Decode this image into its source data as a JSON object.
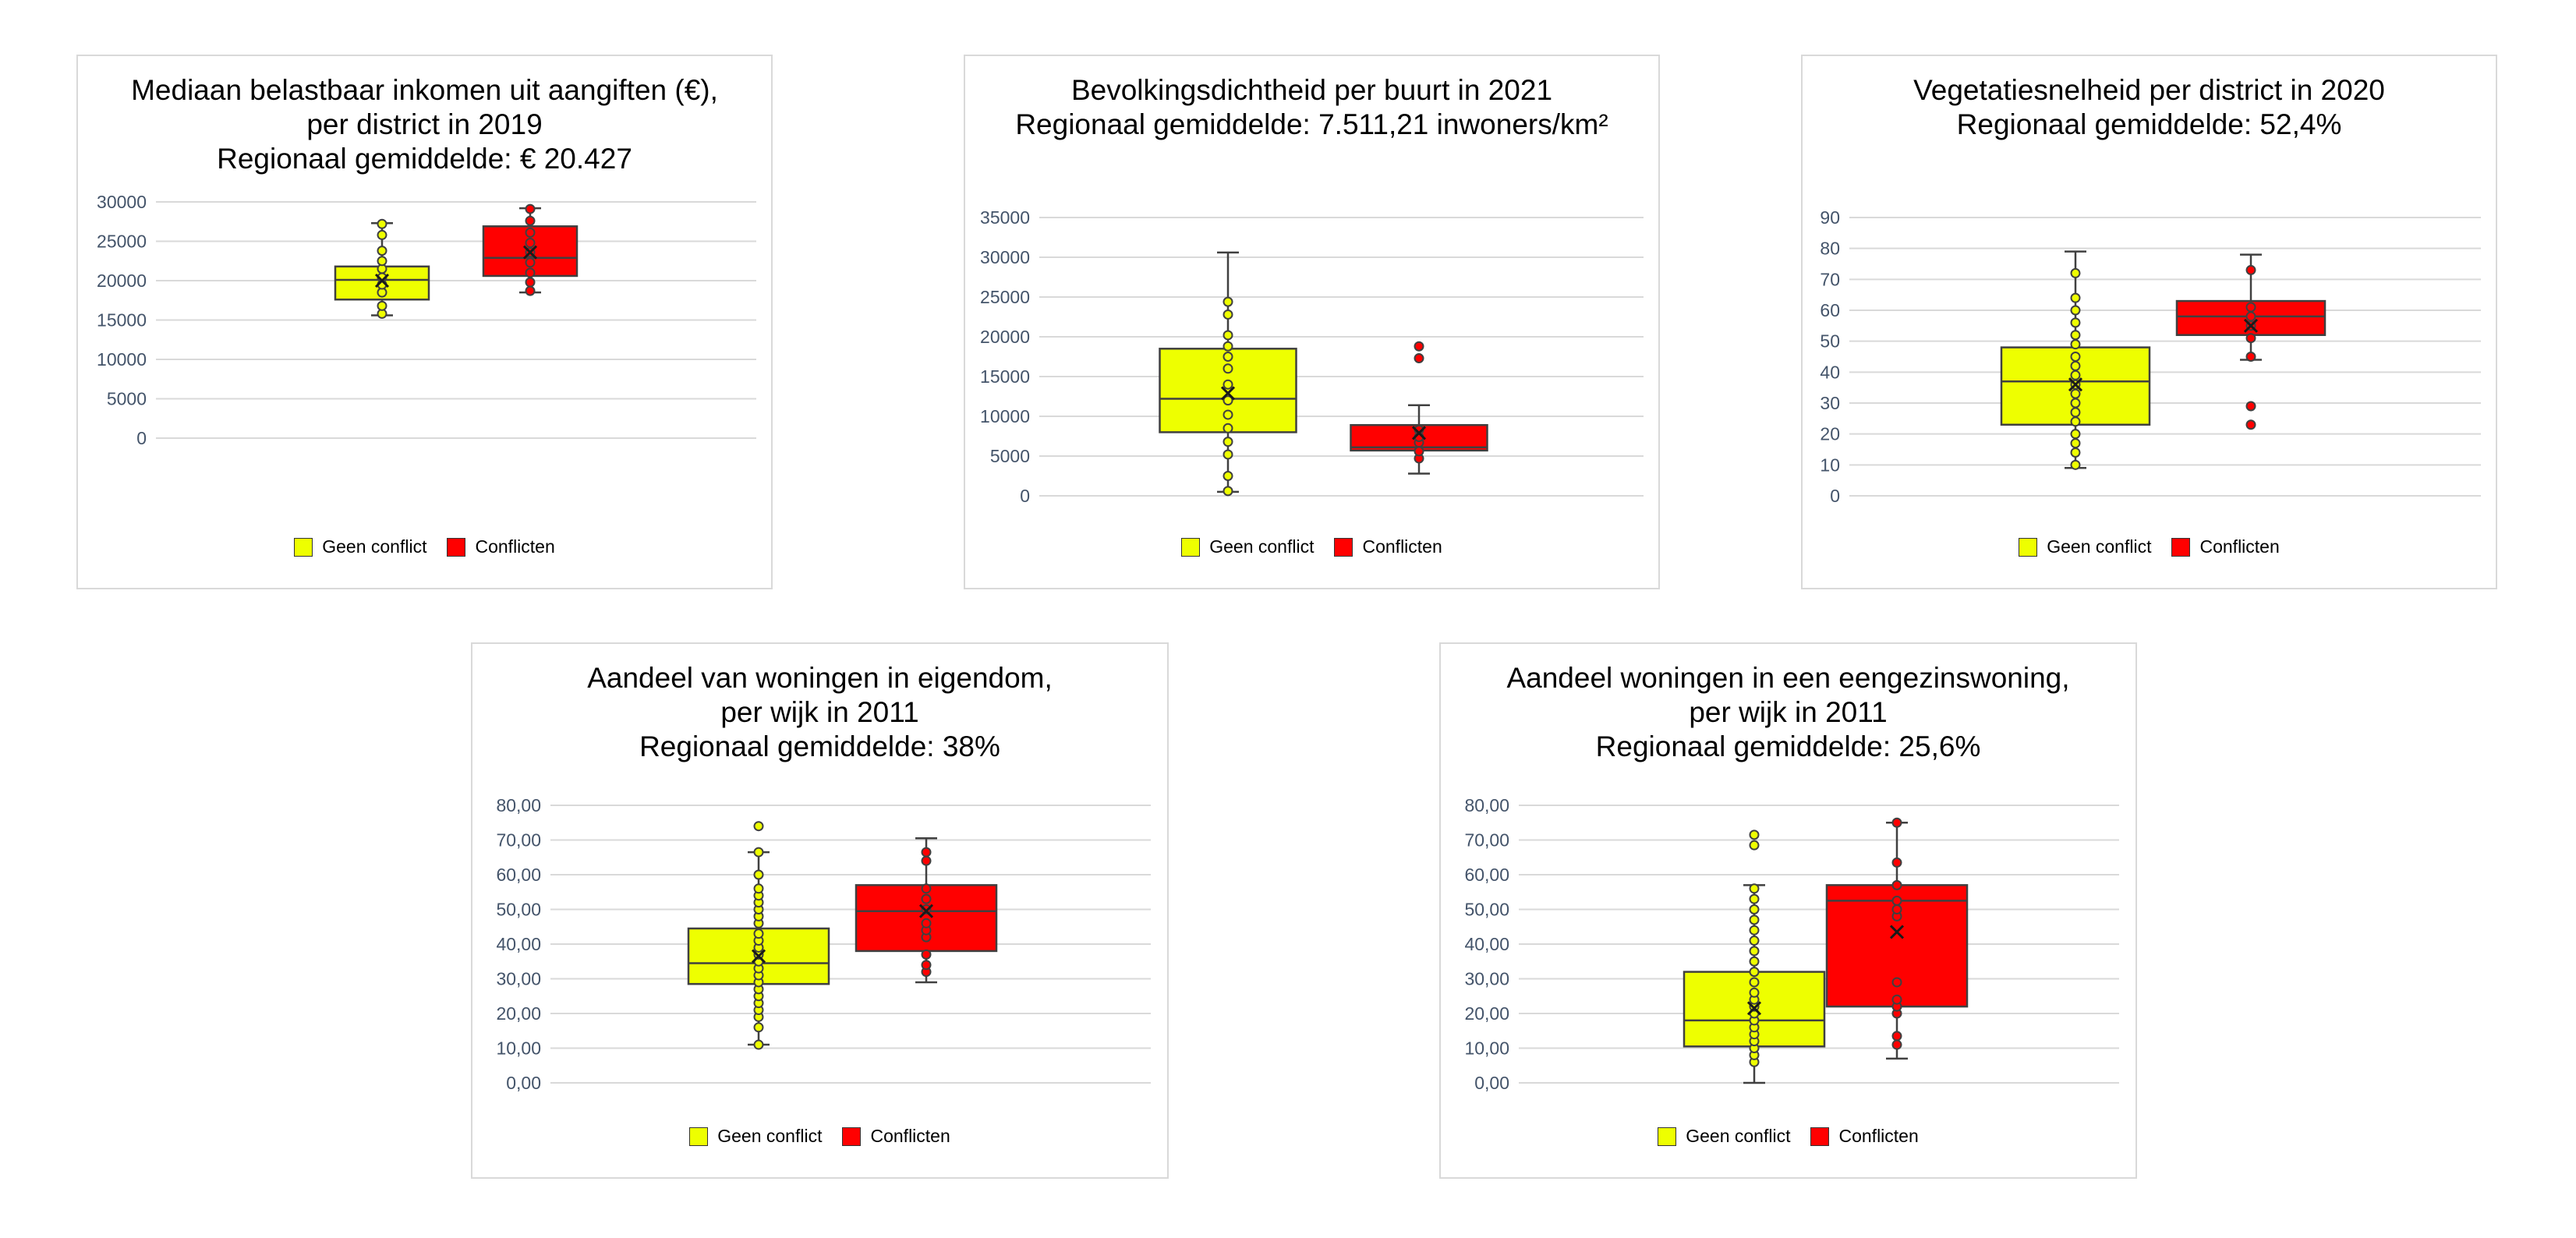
{
  "legend": {
    "geen": "Geen conflict",
    "conflict": "Conflicten"
  },
  "colors": {
    "geen": "#eeff00",
    "conflict": "#ff0000",
    "grid": "#d9d9d9",
    "tick": "#44546a"
  },
  "chart_data": [
    {
      "type": "boxplot",
      "title_lines": [
        "Mediaan belastbaar inkomen uit aangiften (€),",
        "per district in 2019",
        "Regionaal gemiddelde: € 20.427"
      ],
      "y_ticks": [
        "0",
        "5000",
        "10000",
        "15000",
        "20000",
        "25000",
        "30000"
      ],
      "ylim": [
        0,
        30000
      ],
      "series": [
        {
          "name": "Geen conflict",
          "whisker_low": 15600,
          "q1": 17600,
          "median": 20100,
          "q3": 21800,
          "whisker_high": 27300,
          "mean": 20000,
          "points": [
            15800,
            16800,
            18500,
            19500,
            20400,
            21500,
            22500,
            23800,
            25800,
            27200
          ]
        },
        {
          "name": "Conflicten",
          "whisker_low": 18500,
          "q1": 20600,
          "median": 22900,
          "q3": 26900,
          "whisker_high": 29200,
          "mean": 23600,
          "points": [
            18700,
            19800,
            21000,
            22300,
            23600,
            24800,
            26100,
            27600,
            29100
          ]
        }
      ]
    },
    {
      "type": "boxplot",
      "title_lines": [
        "Bevolkingsdichtheid per buurt in 2021",
        "Regionaal gemiddelde: 7.511,21 inwoners/km²"
      ],
      "y_ticks": [
        "0",
        "5000",
        "10000",
        "15000",
        "20000",
        "25000",
        "30000",
        "35000"
      ],
      "ylim": [
        0,
        35000
      ],
      "series": [
        {
          "name": "Geen conflict",
          "whisker_low": 500,
          "q1": 8000,
          "median": 12200,
          "q3": 18500,
          "whisker_high": 30600,
          "mean": 12900,
          "points": [
            600,
            2500,
            5200,
            6800,
            8500,
            10200,
            12000,
            14000,
            16000,
            17500,
            18800,
            20200,
            22800,
            24400
          ]
        },
        {
          "name": "Conflicten",
          "whisker_low": 2800,
          "q1": 5700,
          "median": 6100,
          "q3": 8900,
          "whisker_high": 11400,
          "mean": 7900,
          "points": [
            4700,
            5600,
            6700,
            7400,
            8300,
            17300,
            18800
          ]
        }
      ]
    },
    {
      "type": "boxplot",
      "title_lines": [
        "Vegetatiesnelheid per district in 2020",
        "Regionaal gemiddelde: 52,4%"
      ],
      "y_ticks": [
        "0",
        "10",
        "20",
        "30",
        "40",
        "50",
        "60",
        "70",
        "80",
        "90"
      ],
      "ylim": [
        0,
        90
      ],
      "series": [
        {
          "name": "Geen conflict",
          "whisker_low": 9,
          "q1": 23,
          "median": 37,
          "q3": 48,
          "whisker_high": 79,
          "mean": 36,
          "points": [
            10,
            14,
            17,
            20,
            24,
            27,
            30,
            33,
            36,
            39,
            42,
            45,
            49,
            52,
            56,
            60,
            64,
            72
          ]
        },
        {
          "name": "Conflicten",
          "whisker_low": 44,
          "q1": 52,
          "median": 58,
          "q3": 63,
          "whisker_high": 78,
          "mean": 55,
          "points": [
            23,
            29,
            45,
            51,
            55,
            58,
            61,
            73
          ]
        }
      ]
    },
    {
      "type": "boxplot",
      "title_lines": [
        "Aandeel van woningen in eigendom,",
        "per wijk in 2011",
        "Regionaal gemiddelde: 38%"
      ],
      "y_ticks": [
        "0,00",
        "10,00",
        "20,00",
        "30,00",
        "40,00",
        "50,00",
        "60,00",
        "70,00",
        "80,00"
      ],
      "ylim": [
        0,
        80
      ],
      "series": [
        {
          "name": "Geen conflict",
          "whisker_low": 11,
          "q1": 28.5,
          "median": 34.5,
          "q3": 44.5,
          "whisker_high": 66.5,
          "mean": 36.5,
          "points": [
            11,
            16,
            19,
            21,
            23,
            25,
            27,
            29,
            31,
            33,
            35,
            37,
            39,
            41,
            43,
            46,
            48,
            50,
            52,
            54,
            56,
            60,
            66.5,
            74
          ]
        },
        {
          "name": "Conflicten",
          "whisker_low": 29,
          "q1": 38,
          "median": 49.5,
          "q3": 57,
          "whisker_high": 70.5,
          "mean": 49.5,
          "points": [
            32,
            34,
            37,
            42,
            44,
            46,
            50,
            53,
            56,
            64,
            66.5
          ]
        }
      ]
    },
    {
      "type": "boxplot",
      "title_lines": [
        "Aandeel woningen in een eengezinswoning,",
        "per wijk in 2011",
        "Regionaal gemiddelde: 25,6%"
      ],
      "y_ticks": [
        "0,00",
        "10,00",
        "20,00",
        "30,00",
        "40,00",
        "50,00",
        "60,00",
        "70,00",
        "80,00"
      ],
      "ylim": [
        0,
        80
      ],
      "series": [
        {
          "name": "Geen conflict",
          "whisker_low": 0,
          "q1": 10.5,
          "median": 18,
          "q3": 32,
          "whisker_high": 57,
          "mean": 21.5,
          "points": [
            6,
            8,
            10,
            12,
            14,
            16,
            18,
            20,
            22,
            24,
            26,
            29,
            32,
            35,
            38,
            41,
            44,
            47,
            50,
            53,
            56,
            68.5,
            71.5
          ]
        },
        {
          "name": "Conflicten",
          "whisker_low": 7,
          "q1": 22,
          "median": 52.5,
          "q3": 57,
          "whisker_high": 75,
          "mean": 43.5,
          "points": [
            11,
            13.5,
            20,
            22,
            24,
            29,
            48,
            50,
            52.5,
            57,
            63.5,
            75
          ]
        }
      ]
    }
  ]
}
